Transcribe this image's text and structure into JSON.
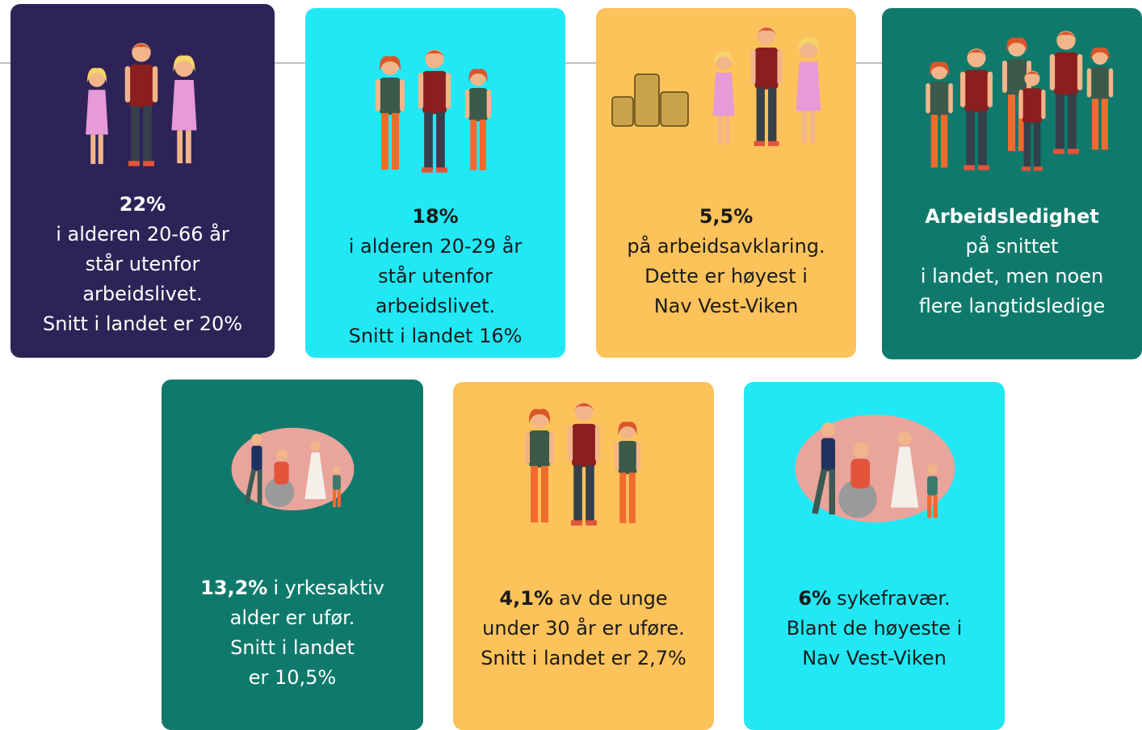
{
  "cards": [
    {
      "lead": "22%",
      "lines": [
        "i alderen 20-66 år",
        "står utenfor",
        "arbeidslivet.",
        "Snitt i landet er 20%"
      ]
    },
    {
      "lead": "18%",
      "lines": [
        "i alderen 20-29 år",
        "står utenfor",
        "arbeidslivet.",
        "Snitt i landet 16%"
      ]
    },
    {
      "lead": "5,5%",
      "lines": [
        "på arbeidsavklaring.",
        "Dette er høyest i",
        "Nav Vest-Viken"
      ]
    },
    {
      "lead": "Arbeidsledighet",
      "lines": [
        "på snittet",
        "i landet, men noen",
        "flere langtidsledige"
      ]
    },
    {
      "lead": "13,2%",
      "lead_rest": "i yrkesaktiv",
      "lines": [
        "alder er ufør.",
        "Snitt i landet",
        "er 10,5%"
      ]
    },
    {
      "lead": "4,1%",
      "lead_rest": "av de unge",
      "lines": [
        "under 30 år er uføre.",
        "Snitt i landet er 2,7%"
      ]
    },
    {
      "lead": "6%",
      "lead_rest": "sykefravær.",
      "lines": [
        "Blant de høyeste i",
        "Nav Vest-Viken"
      ]
    }
  ]
}
